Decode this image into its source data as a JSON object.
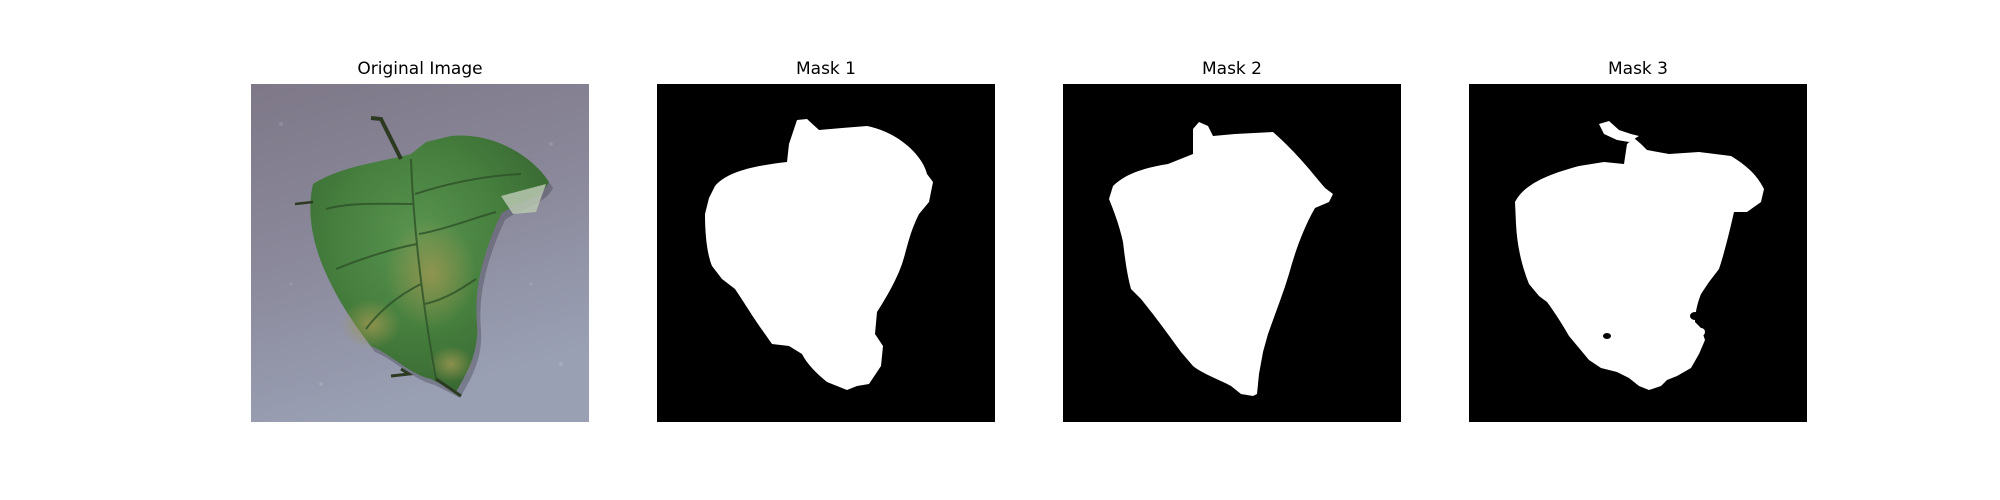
{
  "figure": {
    "panels": [
      {
        "title": "Original Image",
        "kind": "photo"
      },
      {
        "title": "Mask 1",
        "kind": "mask"
      },
      {
        "title": "Mask 2",
        "kind": "mask"
      },
      {
        "title": "Mask 3",
        "kind": "mask"
      }
    ]
  },
  "colors": {
    "background": "#ffffff",
    "mask_background": "#000000",
    "mask_foreground": "#ffffff",
    "photo_surface": "#8c8c9e",
    "leaf_dark": "#3a6b34",
    "leaf_mid": "#4f8a45",
    "leaf_yellow": "#8a8a4a",
    "leaf_shadow": "#2c3a22"
  }
}
